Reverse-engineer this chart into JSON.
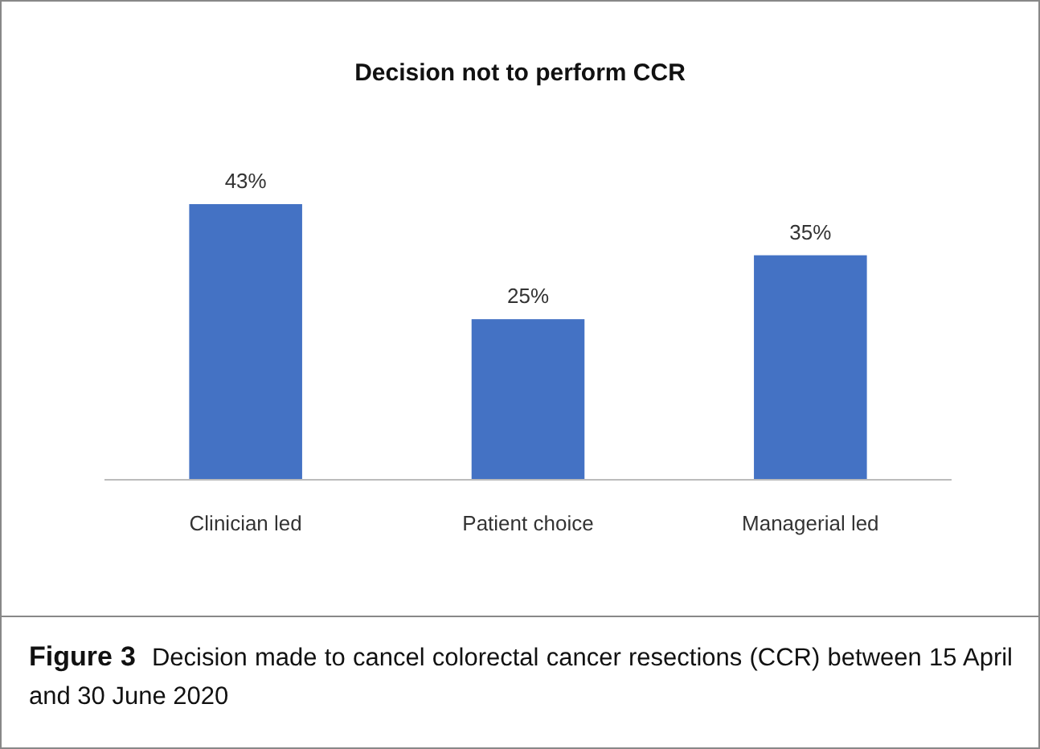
{
  "chart_data": {
    "type": "bar",
    "title": "Decision not to perform CCR",
    "categories": [
      "Clinician led",
      "Patient choice",
      "Managerial led"
    ],
    "values": [
      43,
      25,
      35
    ],
    "color": "#4472c4",
    "value_labels": [
      "43%",
      "25%",
      "35%"
    ],
    "annotations": [
      "Figure 3",
      "Decision made to cancel colorectal cancer resections (CCR) between 15 April and 30 June 2020"
    ]
  }
}
